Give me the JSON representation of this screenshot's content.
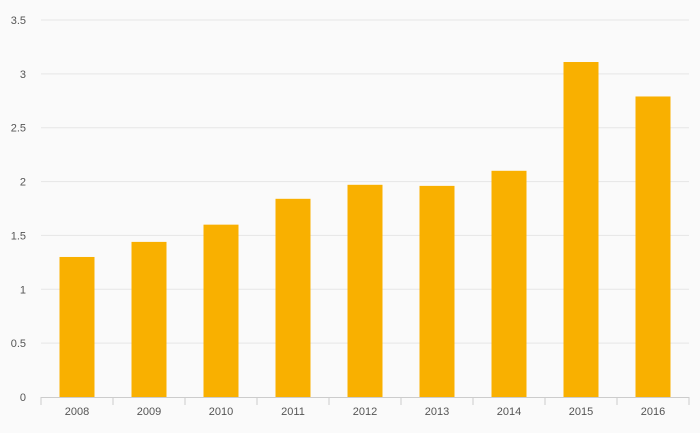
{
  "chart_data": {
    "type": "bar",
    "title": "",
    "xlabel": "",
    "ylabel": "",
    "categories": [
      "2008",
      "2009",
      "2010",
      "2011",
      "2012",
      "2013",
      "2014",
      "2015",
      "2016"
    ],
    "values": [
      1.3,
      1.44,
      1.6,
      1.84,
      1.97,
      1.96,
      2.1,
      3.11,
      2.79
    ],
    "ylim": [
      0,
      3.5
    ],
    "yticks": [
      "0",
      "0.5",
      "1",
      "1.5",
      "2",
      "2.5",
      "3",
      "3.5"
    ],
    "grid": true,
    "legend": "none",
    "colors": {
      "bar": "#f9b000",
      "grid": "#e6e6e6",
      "axis": "#cccccc",
      "text": "#555555",
      "background": "#fafafa"
    }
  }
}
